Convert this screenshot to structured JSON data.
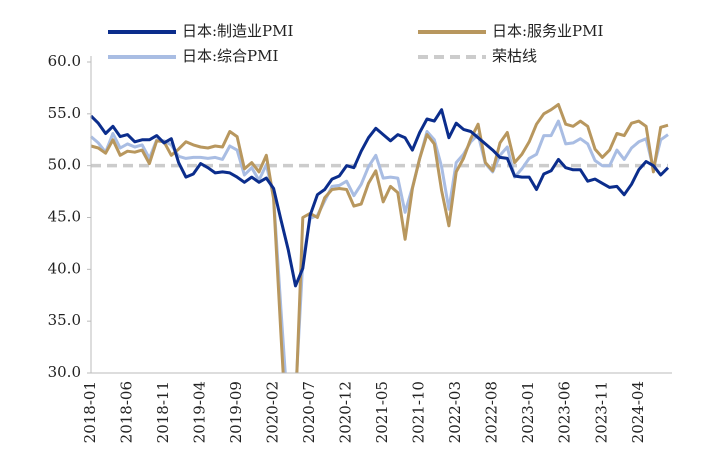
{
  "chart_data": {
    "type": "line",
    "categories": [
      "2018-01",
      null,
      null,
      null,
      null,
      "2018-06",
      null,
      null,
      null,
      null,
      "2018-11",
      null,
      null,
      null,
      null,
      "2019-04",
      null,
      null,
      null,
      null,
      "2019-09",
      null,
      null,
      null,
      null,
      "2020-02",
      null,
      null,
      null,
      null,
      "2020-07",
      null,
      null,
      null,
      null,
      "2020-12",
      null,
      null,
      null,
      null,
      "2021-05",
      null,
      null,
      null,
      null,
      "2021-10",
      null,
      null,
      null,
      null,
      "2022-03",
      null,
      null,
      null,
      null,
      "2022-08",
      null,
      null,
      null,
      null,
      "2023-01",
      null,
      null,
      null,
      null,
      "2023-06",
      null,
      null,
      null,
      null,
      "2023-11",
      null,
      null,
      null,
      null,
      "2024-04",
      null,
      null,
      null,
      null
    ],
    "series": [
      {
        "name": "日本:制造业PMI",
        "color": "#0b2d8c",
        "values": [
          54.8,
          54.1,
          53.1,
          53.8,
          52.8,
          53.0,
          52.3,
          52.5,
          52.5,
          52.9,
          52.2,
          52.6,
          50.3,
          48.9,
          49.2,
          50.2,
          49.8,
          49.3,
          49.4,
          49.3,
          48.9,
          48.4,
          48.9,
          48.4,
          48.8,
          47.8,
          44.8,
          41.9,
          38.4,
          40.1,
          45.2,
          47.2,
          47.7,
          48.7,
          49.0,
          50.0,
          49.8,
          51.4,
          52.7,
          53.6,
          53.0,
          52.4,
          53.0,
          52.7,
          51.5,
          53.2,
          54.5,
          54.3,
          55.4,
          52.7,
          54.1,
          53.5,
          53.3,
          52.7,
          52.1,
          51.5,
          50.8,
          50.7,
          49.0,
          48.9,
          48.9,
          47.7,
          49.2,
          49.5,
          50.6,
          49.8,
          49.6,
          49.6,
          48.5,
          48.7,
          48.3,
          47.9,
          48.0,
          47.2,
          48.2,
          49.6,
          50.4,
          50.0,
          49.1,
          49.8
        ]
      },
      {
        "name": "日本:服务业PMI",
        "color": "#b8975e",
        "values": [
          51.9,
          51.7,
          51.2,
          52.5,
          51.0,
          51.4,
          51.3,
          51.5,
          50.2,
          52.4,
          52.3,
          51.0,
          51.6,
          52.3,
          52.0,
          51.8,
          51.7,
          51.9,
          51.8,
          53.3,
          52.8,
          49.7,
          50.3,
          49.4,
          51.0,
          46.8,
          33.8,
          21.5,
          26.5,
          45.0,
          45.4,
          45.0,
          46.9,
          47.7,
          47.8,
          47.7,
          46.1,
          46.3,
          48.3,
          49.5,
          46.5,
          48.0,
          47.4,
          42.9,
          47.8,
          50.7,
          53.0,
          52.1,
          47.6,
          44.2,
          49.4,
          50.7,
          52.6,
          54.0,
          50.3,
          49.5,
          52.2,
          53.2,
          50.3,
          51.1,
          52.3,
          54.0,
          55.0,
          55.4,
          55.9,
          54.0,
          53.8,
          54.3,
          53.8,
          51.6,
          50.8,
          51.5,
          53.1,
          52.9,
          54.1,
          54.3,
          53.8,
          49.4,
          53.7,
          53.9
        ]
      },
      {
        "name": "日本:综合PMI",
        "color": "#a9bde3",
        "values": [
          52.8,
          52.2,
          51.3,
          53.1,
          51.7,
          52.1,
          51.8,
          52.0,
          50.7,
          52.5,
          52.4,
          52.0,
          50.9,
          50.7,
          50.8,
          50.8,
          50.7,
          50.8,
          50.6,
          51.9,
          51.5,
          49.1,
          49.8,
          48.6,
          50.1,
          47.0,
          36.2,
          25.8,
          27.8,
          40.8,
          44.9,
          45.2,
          46.6,
          48.0,
          48.1,
          48.5,
          47.1,
          48.2,
          49.9,
          51.0,
          48.8,
          48.9,
          48.8,
          45.5,
          47.9,
          50.7,
          53.3,
          52.5,
          49.9,
          45.8,
          50.3,
          51.1,
          52.3,
          53.0,
          50.2,
          49.4,
          51.0,
          51.8,
          48.9,
          49.7,
          50.7,
          51.1,
          52.9,
          52.9,
          54.3,
          52.1,
          52.2,
          52.6,
          52.1,
          50.5,
          50.0,
          50.0,
          51.5,
          50.6,
          51.7,
          52.3,
          52.6,
          49.7,
          52.5,
          53.0
        ]
      }
    ],
    "reference_line": {
      "name": "荣枯线",
      "value": 50,
      "color": "#cccccc",
      "dashed": true
    },
    "ylim": [
      30,
      60
    ],
    "yticks": [
      {
        "value": 30,
        "label": "30.0"
      },
      {
        "value": 35,
        "label": "35.0"
      },
      {
        "value": 40,
        "label": "40.0"
      },
      {
        "value": 45,
        "label": "45.0"
      },
      {
        "value": 50,
        "label": "50.0"
      },
      {
        "value": 55,
        "label": "55.0"
      },
      {
        "value": 60,
        "label": "60.0"
      }
    ],
    "grid": false
  }
}
